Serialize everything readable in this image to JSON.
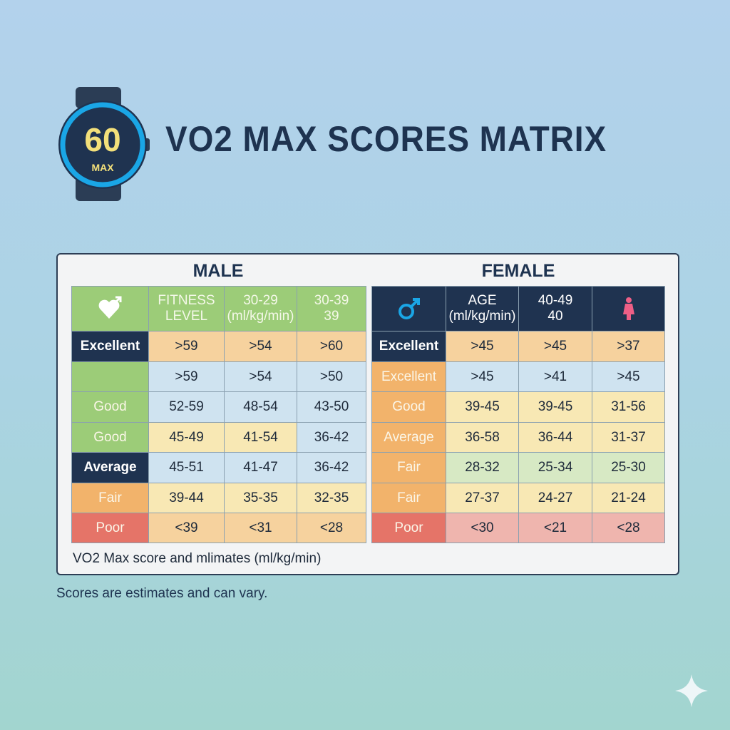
{
  "watch": {
    "value": "60",
    "unit": "MAX"
  },
  "title": "VO2 MAX SCORES MATRIX",
  "tables": [
    {
      "title": "MALE",
      "header": [
        null,
        [
          "FITNESS",
          "LEVEL"
        ],
        [
          "30-29",
          "(ml/kg/min)"
        ],
        [
          "30-39",
          "39"
        ]
      ],
      "rows": [
        [
          "Excellent",
          ">59",
          ">54",
          ">60"
        ],
        [
          null,
          ">59",
          ">54",
          ">50"
        ],
        [
          "Good",
          "52-59",
          "48-54",
          "43-50"
        ],
        [
          "Good",
          "45-49",
          "41-54",
          "36-42"
        ],
        [
          "Average",
          "45-51",
          "41-47",
          "36-42"
        ],
        [
          "Fair",
          "39-44",
          "35-35",
          "32-35"
        ],
        [
          "Poor",
          "<39",
          "<31",
          "<28"
        ]
      ]
    },
    {
      "title": "FEMALE",
      "header": [
        null,
        [
          "AGE",
          "(ml/kg/min)"
        ],
        [
          "40-49",
          "40"
        ],
        null
      ],
      "rows": [
        [
          "Excellent",
          ">45",
          ">45",
          ">37"
        ],
        [
          "Excellent",
          ">45",
          ">41",
          ">45"
        ],
        [
          "Good",
          "39-45",
          "39-45",
          "31-56"
        ],
        [
          "Average",
          "36-58",
          "36-44",
          "31-37"
        ],
        [
          "Fair",
          "28-32",
          "25-34",
          "25-30"
        ],
        [
          "Fair",
          "27-37",
          "24-27",
          "21-24"
        ],
        [
          "Poor",
          "<30",
          "<21",
          "<28"
        ]
      ]
    }
  ],
  "caption": "VO2 Max score and mlimates (ml/kg/min)",
  "footnote": "Scores are estimates and can vary."
}
